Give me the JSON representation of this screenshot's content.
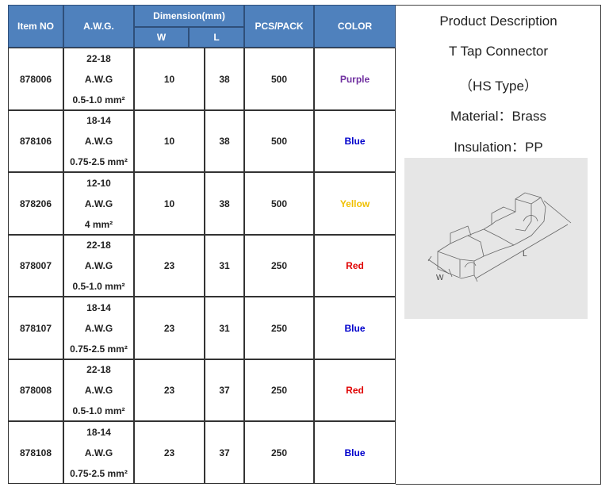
{
  "table": {
    "headers": {
      "item_no": "Item NO",
      "awg": "A.W.G.",
      "dimension": "Dimension(mm)",
      "w": "W",
      "l": "L",
      "pcs_pack": "PCS/PACK",
      "color": "COLOR"
    },
    "rows": [
      {
        "item": "878006",
        "awg": [
          "22-18",
          "A.W.G",
          "0.5-1.0 mm²"
        ],
        "w": "10",
        "l": "38",
        "pcs": "500",
        "color": "Purple",
        "color_hex": "#7030a0"
      },
      {
        "item": "878106",
        "awg": [
          "18-14",
          "A.W.G",
          "0.75-2.5 mm²"
        ],
        "w": "10",
        "l": "38",
        "pcs": "500",
        "color": "Blue",
        "color_hex": "#0000cc"
      },
      {
        "item": "878206",
        "awg": [
          "12-10",
          "A.W.G",
          "4 mm²"
        ],
        "w": "10",
        "l": "38",
        "pcs": "500",
        "color": "Yellow",
        "color_hex": "#f0c000"
      },
      {
        "item": "878007",
        "awg": [
          "22-18",
          "A.W.G",
          "0.5-1.0 mm²"
        ],
        "w": "23",
        "l": "31",
        "pcs": "250",
        "color": "Red",
        "color_hex": "#e00000"
      },
      {
        "item": "878107",
        "awg": [
          "18-14",
          "A.W.G",
          "0.75-2.5 mm²"
        ],
        "w": "23",
        "l": "31",
        "pcs": "250",
        "color": "Blue",
        "color_hex": "#0000cc"
      },
      {
        "item": "878008",
        "awg": [
          "22-18",
          "A.W.G",
          "0.5-1.0 mm²"
        ],
        "w": "23",
        "l": "37",
        "pcs": "250",
        "color": "Red",
        "color_hex": "#e00000"
      },
      {
        "item": "878108",
        "awg": [
          "18-14",
          "A.W.G",
          "0.75-2.5 mm²"
        ],
        "w": "23",
        "l": "37",
        "pcs": "250",
        "color": "Blue",
        "color_hex": "#0000cc"
      }
    ]
  },
  "description": {
    "title": "Product Description",
    "name": "T  Tap  Connector",
    "type": "（HS   Type）",
    "material": "Material：Brass",
    "insulation": "Insulation：PP",
    "drawing_labels": {
      "w": "W",
      "l": "L"
    }
  },
  "colors": {
    "header_bg": "#4f81bd"
  }
}
